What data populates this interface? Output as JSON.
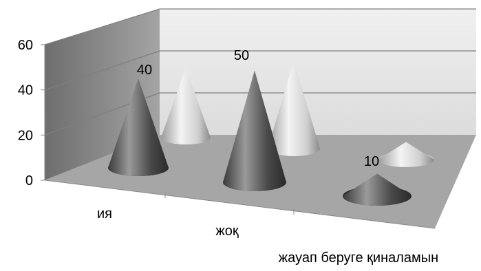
{
  "chart_data": {
    "type": "bar",
    "style": "3d-cone",
    "categories": [
      "ия",
      "жоқ",
      "жауап беруге қиналамын"
    ],
    "series": [
      {
        "values": [
          40,
          50,
          10
        ],
        "color": "#555555",
        "data_labels": true
      },
      {
        "values": [
          40,
          50,
          10
        ],
        "color": "#c8c8c8",
        "data_labels": false
      }
    ],
    "data_labels": [
      "40",
      "50",
      "10"
    ],
    "yticks": [
      "0",
      "20",
      "40",
      "60"
    ],
    "ylim": [
      0,
      60
    ],
    "grid": true,
    "legend": "none",
    "colors": {
      "back_wall": "#e6e6e6",
      "side_wall": "#8c8c8c",
      "floor": "#a6a6a6",
      "gridline": "#7f7f7f"
    }
  }
}
